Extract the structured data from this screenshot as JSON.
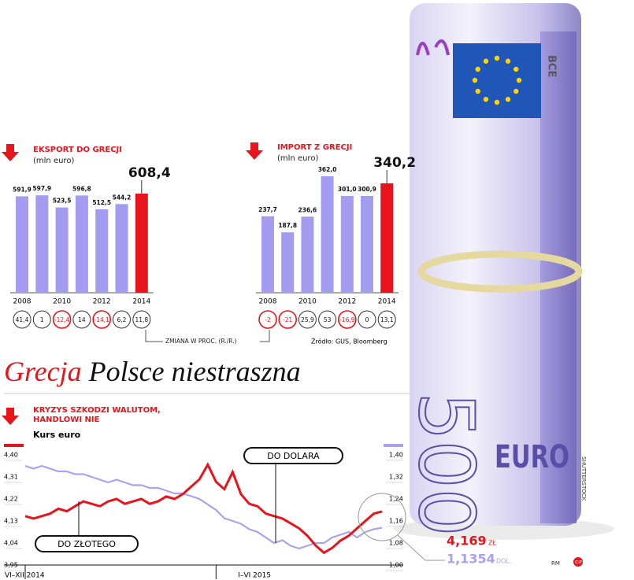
{
  "headline": {
    "part1": "Grecja",
    "part2": "Polsce niestraszna"
  },
  "change_note": "ZMIANA W PROC. (R./R.)",
  "chart_data": [
    {
      "type": "bar",
      "title": "EKSPORT DO GRECJI",
      "subtitle": "(mln euro)",
      "categories": [
        "2008",
        null,
        "2010",
        null,
        "2012",
        null,
        "2014"
      ],
      "values": [
        591.9,
        597.9,
        523.5,
        596.8,
        512.5,
        544.2,
        608.4
      ],
      "value_labels": [
        "591,9",
        "597,9",
        "523,5",
        "596,8",
        "512,5",
        "544,2",
        "608,4"
      ],
      "color": "#a39cf0",
      "highlight_color": "#e8141c",
      "changes": [
        41.4,
        1,
        -12.4,
        14,
        -14.1,
        6.2,
        11.8
      ],
      "change_labels": [
        "41,4",
        "1",
        "-12,4",
        "14",
        "-14,1",
        "6,2",
        "11,8"
      ]
    },
    {
      "type": "bar",
      "title": "IMPORT Z GRECJI",
      "subtitle": "(mln euro)",
      "categories": [
        "2008",
        null,
        "2010",
        null,
        "2012",
        null,
        "2014"
      ],
      "values": [
        237.7,
        187.8,
        236.6,
        362.0,
        301.0,
        300.9,
        340.2
      ],
      "value_labels": [
        "237,7",
        "187,8",
        "236,6",
        "362,0",
        "301,0",
        "300,9",
        "340,2"
      ],
      "color": "#a39cf0",
      "highlight_color": "#e8141c",
      "changes": [
        -2,
        -21,
        25.9,
        53,
        -16.9,
        0,
        13.1
      ],
      "change_labels": [
        "-2",
        "-21",
        "25,9",
        "53",
        "-16,9",
        "0",
        "13,1"
      ],
      "source": "Źródło: GUS, Bloomberg"
    },
    {
      "type": "line",
      "title": "KRYZYS SZKODZI WALUTOM, HANDLOWI NIE",
      "subtitle": "Kurs euro",
      "categories": [
        "VI–XII 2014",
        null,
        null,
        null,
        null,
        null,
        null,
        null,
        null,
        null,
        null,
        null,
        null,
        null,
        null,
        null,
        null,
        null,
        null,
        null,
        null,
        null,
        null,
        "I–VI 2015",
        null,
        null,
        null,
        null,
        null,
        null,
        null,
        null,
        null,
        null,
        null,
        null,
        null,
        null,
        null,
        null,
        null,
        null,
        null,
        null
      ],
      "ylim": [
        3.95,
        4.4
      ],
      "yticks": [
        {
          "value": 4.4,
          "label": "4,40"
        },
        {
          "value": 4.31,
          "label": "4,31"
        },
        {
          "value": 4.22,
          "label": "4,22"
        },
        {
          "value": 4.13,
          "label": "4,13"
        },
        {
          "value": 4.04,
          "label": "4,04"
        },
        {
          "value": 3.95,
          "label": "3,95"
        }
      ],
      "y2lim": [
        1.0,
        1.4
      ],
      "y2ticks": [
        {
          "value": 1.4,
          "label": "1,40"
        },
        {
          "value": 1.32,
          "label": "1,32"
        },
        {
          "value": 1.24,
          "label": "1,24"
        },
        {
          "value": 1.16,
          "label": "1,16"
        },
        {
          "value": 1.08,
          "label": "1,08"
        },
        {
          "value": 1,
          "label": "1,00"
        }
      ],
      "series": [
        {
          "name": "DO ZŁOTEGO",
          "color": "#e8141c",
          "end_label": "4,169",
          "end_unit": "ZŁ",
          "values": [
            4.15,
            4.14,
            4.15,
            4.16,
            4.18,
            4.17,
            4.19,
            4.21,
            4.2,
            4.19,
            4.21,
            4.22,
            4.2,
            4.21,
            4.22,
            4.2,
            4.21,
            4.23,
            4.22,
            4.24,
            4.27,
            4.3,
            4.36,
            4.29,
            4.26,
            4.33,
            4.24,
            4.2,
            4.19,
            4.16,
            4.15,
            4.14,
            4.12,
            4.1,
            4.07,
            4.03,
            4.0,
            4.02,
            4.05,
            4.07,
            4.1,
            4.13,
            4.16,
            4.169
          ]
        },
        {
          "name": "DO DOLARA",
          "color": "#a9a2f0",
          "axis": "y2",
          "end_label": "1,1354",
          "end_unit": "DOL.",
          "values": [
            1.36,
            1.35,
            1.36,
            1.35,
            1.34,
            1.34,
            1.33,
            1.33,
            1.32,
            1.31,
            1.3,
            1.31,
            1.3,
            1.29,
            1.29,
            1.28,
            1.28,
            1.27,
            1.26,
            1.26,
            1.25,
            1.24,
            1.22,
            1.2,
            1.17,
            1.16,
            1.15,
            1.13,
            1.12,
            1.1,
            1.08,
            1.09,
            1.07,
            1.06,
            1.07,
            1.08,
            1.08,
            1.1,
            1.11,
            1.12,
            1.1,
            1.12,
            1.13,
            1.1354
          ]
        }
      ]
    }
  ],
  "photo": {
    "denomination": "500",
    "currency": "EURO",
    "bank": "BCE",
    "credit": "SHUTTERSTOCK"
  },
  "footer": {
    "credit": "RM",
    "logo": "©P"
  }
}
